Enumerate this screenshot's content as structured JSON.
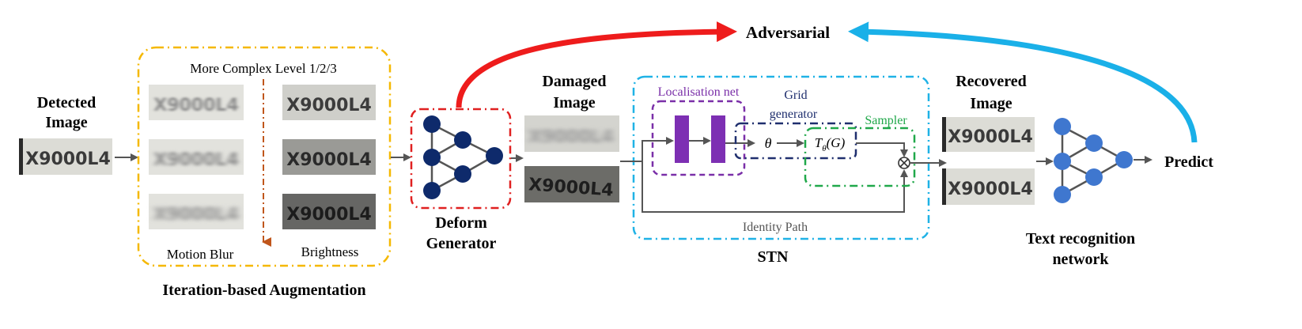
{
  "colors": {
    "augmentation_box": "#f5b800",
    "generator_box": "#e02020",
    "stn_box": "#1fb2e6",
    "localisation_box": "#7a2fa8",
    "localisation_bars": "#7d2fb3",
    "grid_box": "#1f2f6e",
    "sampler_box": "#20a84a",
    "adversarial_red": "#ee1c1c",
    "adversarial_blue": "#1ab0e8",
    "node_dark": "#0e2a6b",
    "node_light": "#3f77cf",
    "down_arrow": "#c0561b",
    "arrow_gray": "#555555"
  },
  "detected": {
    "title_line1": "Detected",
    "title_line2": "Image",
    "plate": "X9000L4"
  },
  "augmentation": {
    "level_label": "More Complex Level 1/2/3",
    "motion_blur_label": "Motion Blur",
    "brightness_label": "Brightness",
    "section_label": "Iteration-based Augmentation",
    "plates_motion": [
      "X9000L4",
      "X9000L4",
      "X9000L4"
    ],
    "plates_brightness": [
      "X9000L4",
      "X9000L4",
      "X9000L4"
    ]
  },
  "generator": {
    "label_line1": "Deform",
    "label_line2": "Generator"
  },
  "damaged": {
    "title_line1": "Damaged",
    "title_line2": "Image",
    "plates": [
      "X9000L4",
      "X9000L4"
    ]
  },
  "stn": {
    "label": "STN",
    "localisation_label": "Localisation net",
    "grid_label_line1": "Grid",
    "grid_label_line2": "generator",
    "sampler_label": "Sampler",
    "theta": "θ",
    "transform_main": "T",
    "transform_sub": "θ",
    "transform_arg": "(G)",
    "identity_label": "Identity Path"
  },
  "recovered": {
    "title_line1": "Recovered",
    "title_line2": "Image",
    "plates": [
      "X9000L4",
      "X9000L4"
    ]
  },
  "recognition": {
    "label_line1": "Text recognition",
    "label_line2": "network",
    "predict_label": "Predict"
  },
  "adversarial_label": "Adversarial"
}
